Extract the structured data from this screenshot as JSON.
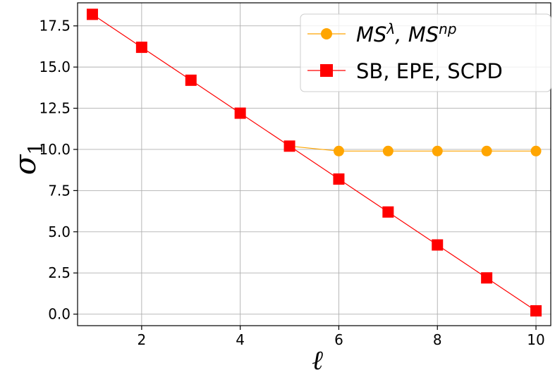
{
  "chart_data": {
    "type": "line",
    "xlabel": "ℓ",
    "ylabel": "σ",
    "ylabel_subscript": "1",
    "xlim": [
      0.7,
      10.3
    ],
    "ylim": [
      -0.7,
      18.9
    ],
    "xticks": [
      2,
      4,
      6,
      8,
      10
    ],
    "xtick_labels": [
      "2",
      "4",
      "6",
      "8",
      "10"
    ],
    "yticks": [
      0.0,
      2.5,
      5.0,
      7.5,
      10.0,
      12.5,
      15.0,
      17.5
    ],
    "ytick_labels": [
      "0.0",
      "2.5",
      "5.0",
      "7.5",
      "10.0",
      "12.5",
      "15.0",
      "17.5"
    ],
    "grid": true,
    "legend_position": "top-right",
    "series": [
      {
        "name": "MS^λ, MS^np",
        "legend_main": [
          "MS",
          ", MS"
        ],
        "legend_sup": [
          "λ",
          "np"
        ],
        "color": "#FFA500",
        "marker": "circle",
        "x": [
          5,
          6,
          7,
          8,
          9,
          10
        ],
        "y": [
          10.2,
          9.9,
          9.9,
          9.9,
          9.9,
          9.9
        ]
      },
      {
        "name": "SB, EPE, SCPD",
        "color": "#FF0000",
        "marker": "square",
        "x": [
          1,
          2,
          3,
          4,
          5,
          6,
          7,
          8,
          9,
          10
        ],
        "y": [
          18.2,
          16.2,
          14.2,
          12.2,
          10.2,
          8.2,
          6.2,
          4.2,
          2.2,
          0.2
        ]
      }
    ]
  }
}
